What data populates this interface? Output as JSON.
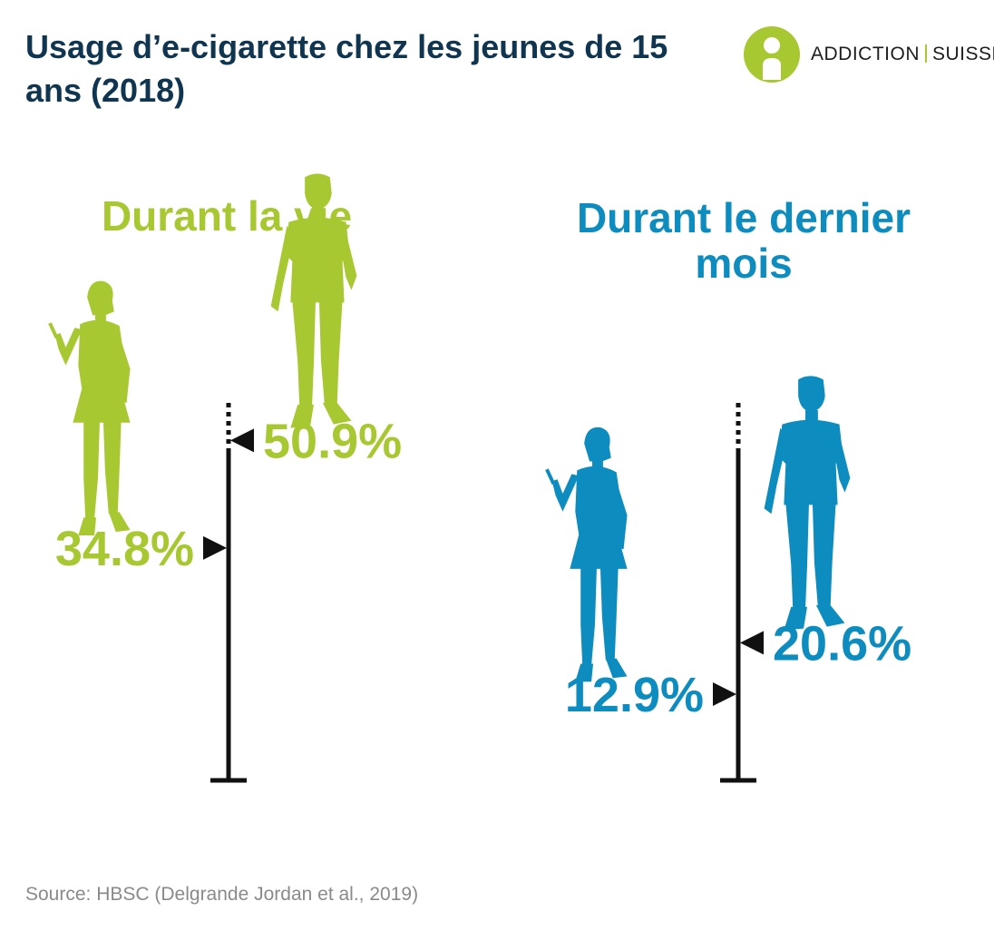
{
  "title": "Usage d’e-cigarette chez les jeunes de 15 ans (2018)",
  "logo": {
    "left_text": "ADDICTION",
    "right_text": "SUISSE"
  },
  "colors": {
    "title": "#0f3550",
    "green": "#a8c832",
    "blue": "#0d8cbf",
    "axis": "#111111",
    "source": "#8a8a8a"
  },
  "source": "Source: HBSC (Delgrande Jordan et al., 2019)",
  "chart_data": [
    {
      "type": "bar",
      "title": "Durant la vie",
      "categories": [
        "filles",
        "garçons"
      ],
      "values": [
        34.8,
        50.9
      ],
      "value_labels": [
        "34.8%",
        "50.9%"
      ],
      "unit": "%",
      "color": "#a8c832"
    },
    {
      "type": "bar",
      "title": "Durant le dernier mois",
      "categories": [
        "filles",
        "garçons"
      ],
      "values": [
        12.9,
        20.6
      ],
      "value_labels": [
        "12.9%",
        "20.6%"
      ],
      "unit": "%",
      "color": "#0d8cbf"
    }
  ]
}
